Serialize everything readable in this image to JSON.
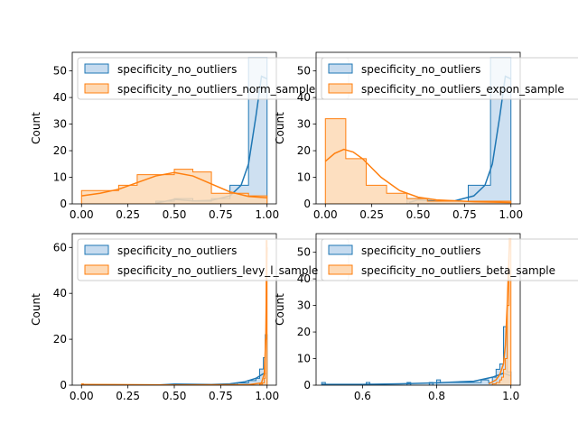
{
  "colors": {
    "c0": "#1f77b4",
    "c1": "#ff7f0e",
    "c0_fill": "#c6dbef",
    "c1_fill": "#fdd9b5"
  },
  "chart_data": [
    {
      "type": "histogram",
      "ylabel": "Count",
      "xlim": [
        -0.05,
        1.05
      ],
      "ylim": [
        0,
        57
      ],
      "xticks": [
        0.0,
        0.25,
        0.5,
        0.75,
        1.0
      ],
      "xtick_labels": [
        "0.00",
        "0.25",
        "0.50",
        "0.75",
        "1.00"
      ],
      "yticks": [
        0,
        10,
        20,
        30,
        40,
        50
      ],
      "legend_loc": "upper-left",
      "series": [
        {
          "name": "specificity_no_outliers",
          "color": "c0",
          "bins": [
            0.0,
            0.1,
            0.2,
            0.3,
            0.4,
            0.5,
            0.6,
            0.7,
            0.8,
            0.9,
            1.0
          ],
          "counts": [
            0,
            0,
            0,
            0,
            1,
            2,
            1,
            2,
            7,
            55
          ],
          "kde": [
            [
              0.4,
              0.2
            ],
            [
              0.5,
              1.7
            ],
            [
              0.6,
              1.1
            ],
            [
              0.7,
              1.3
            ],
            [
              0.8,
              3
            ],
            [
              0.86,
              7
            ],
            [
              0.9,
              15
            ],
            [
              0.94,
              33
            ],
            [
              0.97,
              48
            ],
            [
              1.0,
              47
            ]
          ]
        },
        {
          "name": "specificity_no_outliers_norm_sample",
          "color": "c1",
          "bins": [
            0.0,
            0.1,
            0.2,
            0.3,
            0.4,
            0.5,
            0.6,
            0.7,
            0.8,
            0.9,
            1.0
          ],
          "counts": [
            5,
            5,
            7,
            11,
            11,
            13,
            12,
            4,
            4,
            3
          ],
          "kde": [
            [
              0.0,
              3
            ],
            [
              0.1,
              4
            ],
            [
              0.2,
              5.5
            ],
            [
              0.3,
              8
            ],
            [
              0.4,
              10.5
            ],
            [
              0.5,
              11.8
            ],
            [
              0.6,
              10.5
            ],
            [
              0.7,
              7.5
            ],
            [
              0.8,
              4.5
            ],
            [
              0.9,
              2.8
            ],
            [
              1.0,
              2.3
            ]
          ]
        }
      ]
    },
    {
      "type": "histogram",
      "ylabel": "Count",
      "xlim": [
        -0.05,
        1.05
      ],
      "ylim": [
        0,
        57
      ],
      "xticks": [
        0.0,
        0.25,
        0.5,
        0.75,
        1.0
      ],
      "xtick_labels": [
        "0.00",
        "0.25",
        "0.50",
        "0.75",
        "1.00"
      ],
      "yticks": [
        0,
        10,
        20,
        30,
        40,
        50
      ],
      "legend_loc": "upper-left",
      "series": [
        {
          "name": "specificity_no_outliers",
          "color": "c0",
          "bins": [
            0.0,
            0.11,
            0.22,
            0.33,
            0.44,
            0.55,
            0.66,
            0.77,
            0.89,
            1.0
          ],
          "counts": [
            0,
            0,
            0,
            0,
            2,
            1,
            1,
            7,
            55
          ],
          "kde": [
            [
              0.45,
              0.5
            ],
            [
              0.5,
              1.5
            ],
            [
              0.6,
              1
            ],
            [
              0.7,
              1.2
            ],
            [
              0.8,
              3
            ],
            [
              0.86,
              7
            ],
            [
              0.9,
              15
            ],
            [
              0.94,
              33
            ],
            [
              0.97,
              48
            ],
            [
              1.0,
              47
            ]
          ]
        },
        {
          "name": "specificity_no_outliers_expon_sample",
          "color": "c1",
          "bins": [
            0.0,
            0.11,
            0.22,
            0.33,
            0.44,
            0.55,
            0.66,
            0.77,
            0.89,
            1.0
          ],
          "counts": [
            32,
            17,
            7,
            4,
            2,
            1,
            1,
            1,
            1
          ],
          "kde": [
            [
              0.0,
              16
            ],
            [
              0.05,
              19
            ],
            [
              0.1,
              20.5
            ],
            [
              0.15,
              19.5
            ],
            [
              0.2,
              17
            ],
            [
              0.3,
              10
            ],
            [
              0.4,
              5
            ],
            [
              0.5,
              2.5
            ],
            [
              0.6,
              1.5
            ],
            [
              0.8,
              0.8
            ],
            [
              1.0,
              0.5
            ]
          ]
        }
      ]
    },
    {
      "type": "histogram",
      "ylabel": "Count",
      "xlim": [
        -0.05,
        1.05
      ],
      "ylim": [
        0,
        66
      ],
      "xticks": [
        0.0,
        0.25,
        0.5,
        0.75,
        1.0
      ],
      "xtick_labels": [
        "0.00",
        "0.25",
        "0.50",
        "0.75",
        "1.00"
      ],
      "yticks": [
        0,
        20,
        40,
        60
      ],
      "legend_loc": "upper-left",
      "series": [
        {
          "name": "specificity_no_outliers",
          "color": "c0",
          "bins": [
            0.5,
            0.84,
            0.86,
            0.88,
            0.9,
            0.92,
            0.94,
            0.96,
            0.98,
            0.99,
            1.0
          ],
          "counts": [
            0.3,
            1,
            1,
            1,
            2,
            2,
            3,
            7,
            12,
            22
          ],
          "kde": [
            [
              0.0,
              0
            ],
            [
              0.4,
              0
            ],
            [
              0.5,
              0.5
            ],
            [
              0.7,
              0.3
            ],
            [
              0.8,
              0.6
            ],
            [
              0.88,
              1.5
            ],
            [
              0.94,
              3
            ],
            [
              0.98,
              5
            ],
            [
              1.0,
              5
            ]
          ]
        },
        {
          "name": "specificity_no_outliers_levy_l_sample",
          "color": "c1",
          "bins": [
            0.0,
            0.01,
            0.96,
            0.975,
            0.985,
            0.99,
            0.995,
            1.0
          ],
          "counts": [
            0.6,
            0,
            0.5,
            1,
            3,
            20,
            63
          ],
          "kde": [
            [
              0.0,
              0.3
            ],
            [
              0.5,
              0.1
            ],
            [
              0.9,
              0.2
            ],
            [
              0.97,
              1
            ],
            [
              0.985,
              5
            ],
            [
              0.993,
              20
            ],
            [
              0.998,
              55
            ],
            [
              1.0,
              60
            ]
          ]
        }
      ]
    },
    {
      "type": "histogram",
      "ylabel": "Count",
      "xlim": [
        0.475,
        1.025
      ],
      "ylim": [
        0,
        57
      ],
      "xticks": [
        0.6,
        0.8,
        1.0
      ],
      "xtick_labels": [
        "0.6",
        "0.8",
        "1.0"
      ],
      "yticks": [
        0,
        10,
        20,
        30,
        40,
        50
      ],
      "legend_loc": "upper-left",
      "series": [
        {
          "name": "specificity_no_outliers",
          "color": "c0",
          "bins": [
            0.49,
            0.5,
            0.61,
            0.62,
            0.72,
            0.73,
            0.78,
            0.79,
            0.8,
            0.81,
            0.82,
            0.84,
            0.86,
            0.88,
            0.9,
            0.92,
            0.94,
            0.95,
            0.96,
            0.97,
            0.98,
            0.99,
            1.0
          ],
          "counts": [
            1,
            0,
            1,
            0,
            1,
            0,
            1,
            0,
            2,
            1,
            1,
            1,
            1,
            1,
            1,
            2,
            1,
            3,
            6,
            8,
            22,
            5
          ],
          "kde": [
            [
              0.49,
              0.3
            ],
            [
              0.6,
              0.3
            ],
            [
              0.7,
              0.5
            ],
            [
              0.8,
              0.9
            ],
            [
              0.9,
              1.5
            ],
            [
              0.95,
              3
            ],
            [
              0.98,
              4.5
            ],
            [
              1.0,
              3.5
            ]
          ]
        },
        {
          "name": "specificity_no_outliers_beta_sample",
          "color": "c1",
          "bins": [
            0.95,
            0.96,
            0.97,
            0.975,
            0.98,
            0.985,
            0.99,
            0.995,
            1.0
          ],
          "counts": [
            0.5,
            1,
            2,
            3,
            6,
            10,
            30,
            55
          ],
          "kde": [
            [
              0.94,
              0.5
            ],
            [
              0.96,
              2
            ],
            [
              0.97,
              4
            ],
            [
              0.98,
              8
            ],
            [
              0.985,
              15
            ],
            [
              0.99,
              30
            ],
            [
              0.995,
              50
            ],
            [
              0.998,
              55
            ]
          ]
        }
      ]
    }
  ]
}
